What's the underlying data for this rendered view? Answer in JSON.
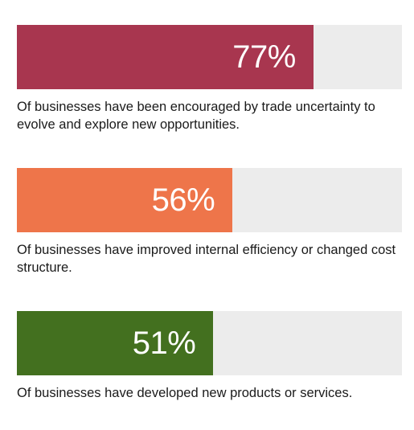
{
  "chart_data": {
    "type": "bar",
    "orientation": "horizontal",
    "ylim": [
      0,
      100
    ],
    "items": [
      {
        "value": 77,
        "label": "77%",
        "caption": "Of businesses have been encouraged by trade uncertainty to evolve and explore new opportunities.",
        "color": "#a8364f"
      },
      {
        "value": 56,
        "label": "56%",
        "caption": "Of businesses have improved internal efficiency or changed cost structure.",
        "color": "#ee754a"
      },
      {
        "value": 51,
        "label": "51%",
        "caption": "Of businesses have developed new products or services.",
        "color": "#43701f"
      }
    ]
  },
  "colors": {
    "track": "#ececec",
    "value_text": "#ffffff",
    "caption_text": "#1a1a1a"
  }
}
